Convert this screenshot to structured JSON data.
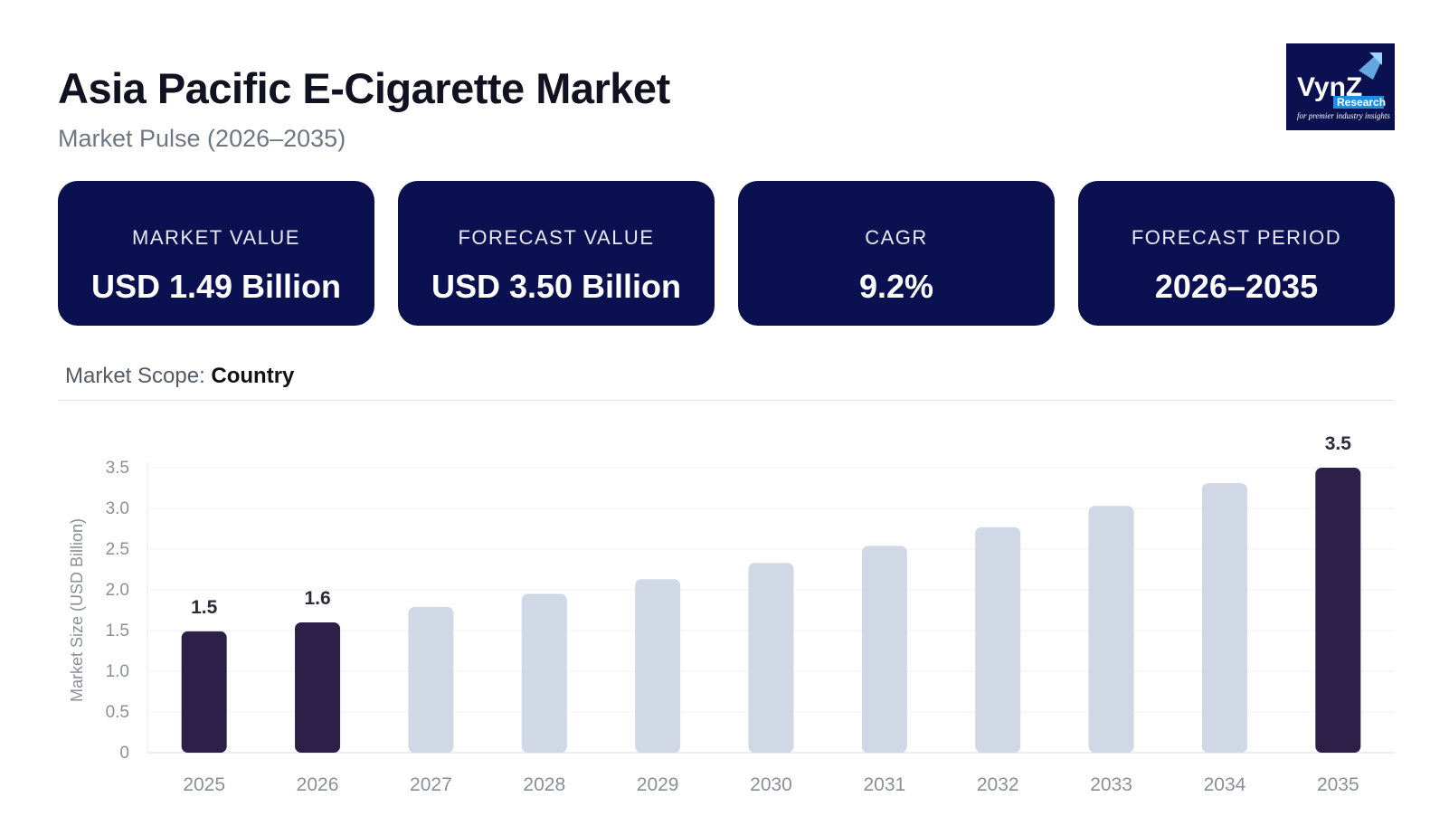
{
  "header": {
    "title": "Asia Pacific E-Cigarette Market",
    "subtitle": "Market Pulse (2026–2035)"
  },
  "logo": {
    "text": "VynZ",
    "sub": "Research",
    "tagline": "for premier industry insights"
  },
  "cards": [
    {
      "label": "MARKET VALUE",
      "value": "USD 1.49 Billion"
    },
    {
      "label": "FORECAST VALUE",
      "value": "USD 3.50 Billion"
    },
    {
      "label": "CAGR",
      "value": "9.2%"
    },
    {
      "label": "FORECAST PERIOD",
      "value": "2026–2035"
    }
  ],
  "scope": {
    "label": "Market Scope:",
    "value": "Country"
  },
  "colors": {
    "navy": "#0b1050",
    "highlight_bar": "#2c1f48",
    "muted_bar": "#cfd8e4"
  },
  "chart_data": {
    "type": "bar",
    "categories": [
      "2025",
      "2026",
      "2027",
      "2028",
      "2029",
      "2030",
      "2031",
      "2032",
      "2033",
      "2034",
      "2035"
    ],
    "values": [
      1.49,
      1.6,
      1.79,
      1.95,
      2.13,
      2.33,
      2.54,
      2.77,
      3.03,
      3.31,
      3.5
    ],
    "highlighted": [
      "2025",
      "2026",
      "2035"
    ],
    "data_labels": {
      "2025": "1.5",
      "2026": "1.6",
      "2035": "3.5"
    },
    "ylabel": "Market Size (USD Billion)",
    "yticks": [
      "0",
      "0.5",
      "1.0",
      "1.5",
      "2.0",
      "2.5",
      "3.0",
      "3.5"
    ],
    "ylim": [
      0,
      3.5
    ],
    "grid": true,
    "legend": "none"
  }
}
